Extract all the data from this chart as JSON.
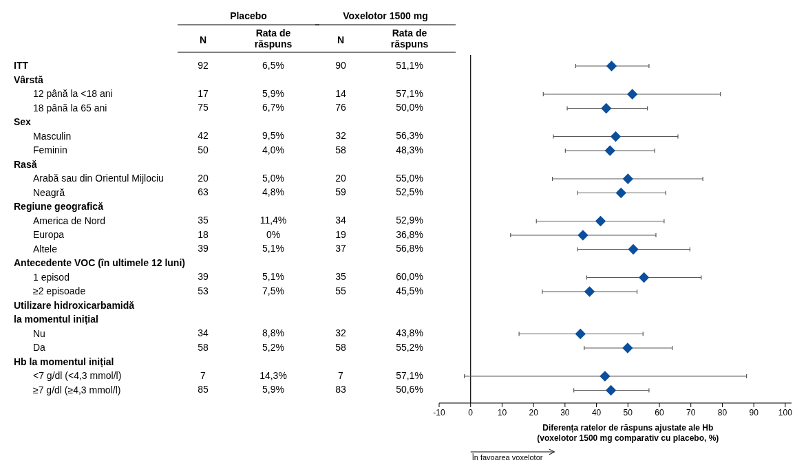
{
  "chart_data": [
    {
      "type": "other",
      "annotations": [
        "Placebo",
        "Voxelotor 1500 mg"
      ],
      "categories": [
        "N",
        "Rata de răspuns",
        "N",
        "Rata de răspuns"
      ],
      "y_categories": [
        "ITT",
        "Vârstă",
        "12 până la <18 ani",
        "18 până la 65 ani",
        "Sex",
        "Masculin",
        "Feminin",
        "Rasă",
        "Arabă sau din Orientul Mijlociu",
        "Neagră",
        "Regiune geografică",
        "America de Nord",
        "Europa",
        "Altele",
        "Antecedente VOC (în ultimele 12 luni)",
        "1 episod",
        "≥2 episoade",
        "Utilizare hidroxicarbamidă",
        "la momentul inițial",
        "Nu",
        "Da",
        "Hb la momentul inițial",
        "<7 g/dl (<4,3 mmol/l)",
        "≥7 g/dl (≥4,3 mmol/l)"
      ],
      "cell_labels": [
        [
          "92",
          "6,5%",
          "90",
          "51,1%"
        ],
        [
          null,
          null,
          null,
          null
        ],
        [
          "17",
          "5,9%",
          "14",
          "57,1%"
        ],
        [
          "75",
          "6,7%",
          "76",
          "50,0%"
        ],
        [
          null,
          null,
          null,
          null
        ],
        [
          "42",
          "9,5%",
          "32",
          "56,3%"
        ],
        [
          "50",
          "4,0%",
          "58",
          "48,3%"
        ],
        [
          null,
          null,
          null,
          null
        ],
        [
          "20",
          "5,0%",
          "20",
          "55,0%"
        ],
        [
          "63",
          "4,8%",
          "59",
          "52,5%"
        ],
        [
          null,
          null,
          null,
          null
        ],
        [
          "35",
          "11,4%",
          "34",
          "52,9%"
        ],
        [
          "18",
          "0%",
          "19",
          "36,8%"
        ],
        [
          "39",
          "5,1%",
          "37",
          "56,8%"
        ],
        [
          null,
          null,
          null,
          null
        ],
        [
          "39",
          "5,1%",
          "35",
          "60,0%"
        ],
        [
          "53",
          "7,5%",
          "55",
          "45,5%"
        ],
        [
          null,
          null,
          null,
          null
        ],
        [
          null,
          null,
          null,
          null
        ],
        [
          "34",
          "8,8%",
          "32",
          "43,8%"
        ],
        [
          "58",
          "5,2%",
          "58",
          "55,2%"
        ],
        [
          null,
          null,
          null,
          null
        ],
        [
          "7",
          "14,3%",
          "7",
          "57,1%"
        ],
        [
          "85",
          "5,9%",
          "83",
          "50,6%"
        ]
      ]
    },
    {
      "type": "scatter",
      "orientation": "horizontal",
      "marker": "diamond",
      "color": "#0b4f9c",
      "tick_labels": "x",
      "xlabel": "Diferența ratelor de răspuns ajustate ale Hb (voxelotor 1500 mg comparativ cu placebo, %)",
      "annotations": [
        "În favoarea voxelotor"
      ],
      "categories": [
        null,
        null,
        null,
        null,
        null,
        null,
        null,
        null,
        null,
        null,
        null,
        null,
        null,
        null,
        null,
        null,
        null,
        null,
        null,
        null,
        null,
        null,
        null,
        null
      ],
      "values": [
        44.8,
        null,
        51.4,
        43.1,
        null,
        46.1,
        44.3,
        null,
        50.0,
        47.8,
        null,
        41.3,
        35.7,
        51.7,
        null,
        55.1,
        37.8,
        null,
        null,
        34.9,
        49.9,
        null,
        42.7,
        44.6
      ],
      "errors": [
        [
          33.4,
          56.7
        ],
        null,
        [
          23.1,
          79.4
        ],
        [
          30.7,
          56.2
        ],
        null,
        [
          26.3,
          65.9
        ],
        [
          30.1,
          58.5
        ],
        null,
        [
          26.0,
          73.8
        ],
        [
          34.0,
          62.0
        ],
        null,
        [
          20.9,
          61.5
        ],
        [
          12.7,
          58.9
        ],
        [
          34.0,
          69.7
        ],
        null,
        [
          36.9,
          73.3
        ],
        [
          22.8,
          52.9
        ],
        null,
        null,
        [
          15.4,
          54.8
        ],
        [
          36.1,
          64.1
        ],
        null,
        [
          -2.0,
          87.7
        ],
        [
          32.8,
          56.7
        ]
      ],
      "xlim": [
        -10,
        102
      ],
      "xticks": [
        -10,
        0,
        10,
        20,
        30,
        40,
        50,
        60,
        70,
        80,
        90,
        100
      ],
      "ref_lines": [
        {
          "axis": "x",
          "value": 0,
          "color": "#000000"
        }
      ]
    }
  ]
}
